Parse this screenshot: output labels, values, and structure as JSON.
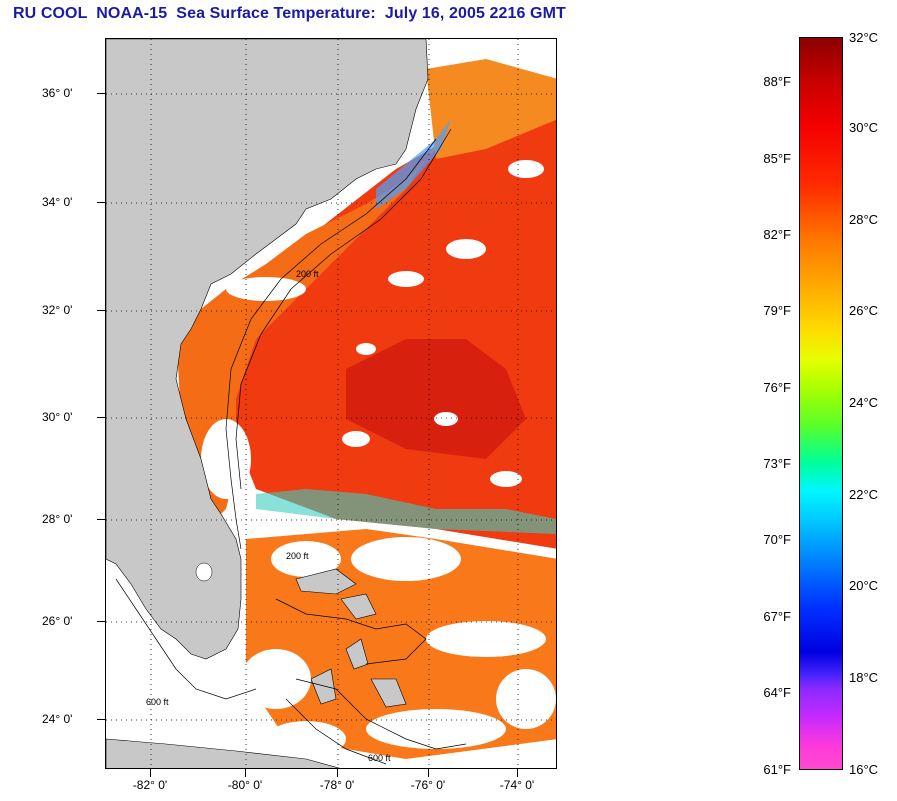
{
  "title": "RU COOL  NOAA-15  Sea Surface Temperature:  July 16, 2005 2216 GMT",
  "map": {
    "lat_labels": [
      "36° 0'",
      "34° 0'",
      "32° 0'",
      "30° 0'",
      "28° 0'",
      "26° 0'",
      "24° 0'"
    ],
    "lon_labels": [
      "-82° 0'",
      "-80° 0'",
      "-78° 0'",
      "-76° 0'",
      "-74° 0'"
    ],
    "isobath_labels": [
      "200 ft",
      "600 ft",
      "200 ft",
      "600 ft"
    ],
    "land_color": "#c8c8c8",
    "cloud_color": "#ffffff"
  },
  "colorbar": {
    "celsius": [
      "32°C",
      "30°C",
      "28°C",
      "26°C",
      "24°C",
      "22°C",
      "20°C",
      "18°C",
      "16°C"
    ],
    "fahrenheit": [
      "88°F",
      "85°F",
      "82°F",
      "79°F",
      "76°F",
      "73°F",
      "70°F",
      "67°F",
      "64°F",
      "61°F"
    ]
  }
}
